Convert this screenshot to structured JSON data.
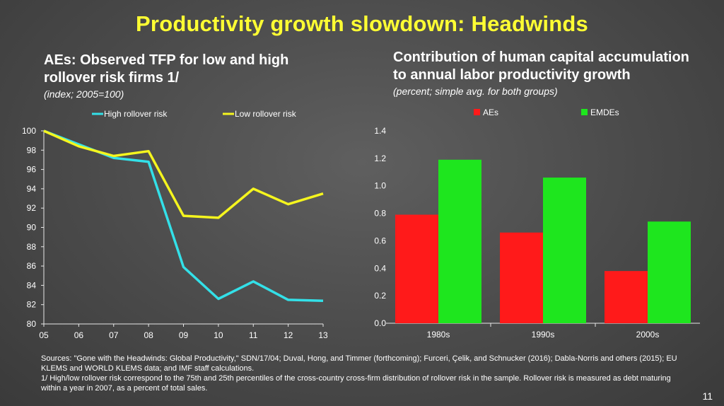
{
  "title": "Productivity growth slowdown: Headwinds",
  "left_chart": {
    "title_line1": "AEs: Observed TFP for low and high",
    "title_line2": "rollover risk firms 1/",
    "subtitle": "(index; 2005=100)"
  },
  "right_chart": {
    "title_line1": "Contribution of human capital accumulation",
    "title_line2": "to annual labor productivity growth",
    "subtitle": "(percent; simple avg. for both groups)"
  },
  "chart_data": [
    {
      "type": "line",
      "title": "AEs: Observed TFP for low and high rollover risk firms 1/",
      "subtitle": "(index; 2005=100)",
      "x": [
        "05",
        "06",
        "07",
        "08",
        "09",
        "10",
        "11",
        "12",
        "13"
      ],
      "series": [
        {
          "name": "High rollover risk",
          "color": "#33e0e8",
          "values": [
            100,
            98.6,
            97.2,
            96.8,
            85.9,
            82.6,
            84.4,
            82.5,
            82.4
          ]
        },
        {
          "name": "Low rollover risk",
          "color": "#f5f51e",
          "values": [
            100,
            98.4,
            97.4,
            97.9,
            91.2,
            91.0,
            94.0,
            92.4,
            93.5
          ]
        }
      ],
      "ylim": [
        80,
        100
      ],
      "yticks": [
        80,
        82,
        84,
        86,
        88,
        90,
        92,
        94,
        96,
        98,
        100
      ],
      "legend": "top",
      "grid": false
    },
    {
      "type": "bar",
      "title": "Contribution of human capital accumulation to annual labor productivity growth",
      "subtitle": "(percent; simple avg. for both groups)",
      "categories": [
        "1980s",
        "1990s",
        "2000s"
      ],
      "series": [
        {
          "name": "AEs",
          "color": "#ff1a1a",
          "values": [
            0.79,
            0.66,
            0.38
          ]
        },
        {
          "name": "EMDEs",
          "color": "#1ee61e",
          "values": [
            1.19,
            1.06,
            0.74
          ]
        }
      ],
      "ylim": [
        0,
        1.4
      ],
      "yticks": [
        "0.0",
        "0.2",
        "0.4",
        "0.6",
        "0.8",
        "1.0",
        "1.2",
        "1.4"
      ],
      "legend": "top",
      "grid": false
    }
  ],
  "footer": {
    "sources_line1": "Sources: \"Gone with the Headwinds: Global Productivity,\" SDN/17/04; Duval, Hong, and Timmer (forthcoming); Furceri, Çelik, and Schnucker (2016); Dabla-Norris and others (2015); EU",
    "sources_line2": "KLEMS and WORLD KLEMS data; and IMF staff calculations.",
    "note_line1": "1/ High/low rollover risk correspond to the 75th and 25th percentiles of the cross-country cross-firm distribution of rollover risk in the sample. Rollover risk is measured as debt maturing",
    "note_line2": "within a year in 2007, as a percent of total sales.",
    "page_number": "11"
  }
}
